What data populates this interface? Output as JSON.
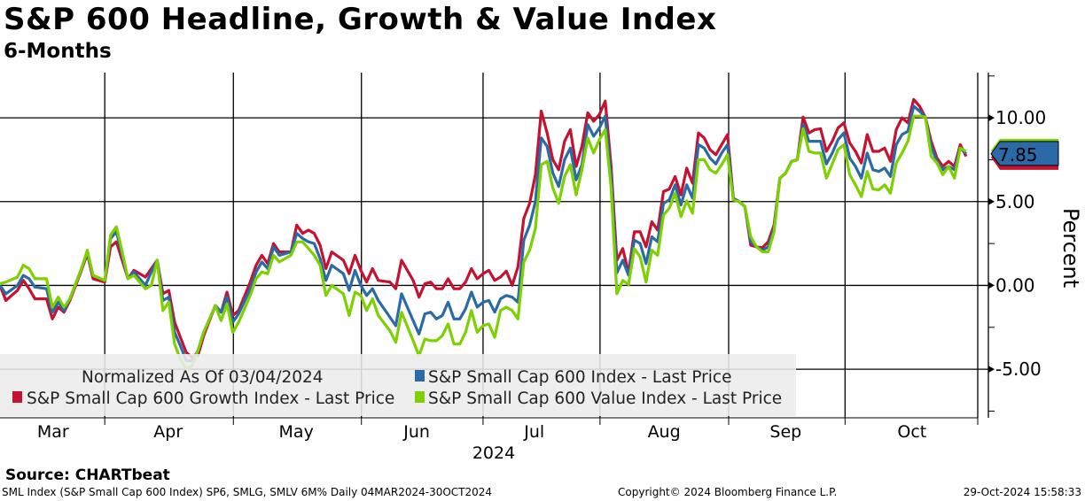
{
  "header": {
    "title": "S&P 600 Headline, Growth & Value Index",
    "subtitle": "6-Months"
  },
  "footer": {
    "source": "Source: CHARTbeat",
    "left": "SML Index (S&P Small Cap 600 Index) SP6, SMLG, SMLV 6M%  Daily 04MAR2024-30OCT2024",
    "center": "Copyright© 2024 Bloomberg Finance L.P.",
    "right": "29-Oct-2024 15:58:33"
  },
  "chart_data": {
    "type": "line",
    "title": "S&P 600 Headline, Growth & Value Index",
    "subtitle": "6-Months",
    "xlabel": "2024",
    "ylabel": "Percent",
    "x_unit": "trading day index from 04-Mar-2024",
    "xlim": [
      0,
      168
    ],
    "ylim": [
      -7.9,
      12.7
    ],
    "grid": true,
    "legend_placement": "bottom-left",
    "legend_note": "Normalized As Of 03/04/2024",
    "month_boundaries": [
      18,
      40.1,
      62.1,
      83,
      103.1,
      125.2,
      145.2,
      168
    ],
    "month_labels": [
      {
        "label": "Mar",
        "x": 9.1
      },
      {
        "label": "Apr",
        "x": 28.9
      },
      {
        "label": "May",
        "x": 50.9
      },
      {
        "label": "Jun",
        "x": 71.6
      },
      {
        "label": "Jul",
        "x": 91.8
      },
      {
        "label": "Aug",
        "x": 114.1
      },
      {
        "label": "Sep",
        "x": 135
      },
      {
        "label": "Oct",
        "x": 156.7
      }
    ],
    "y_ticks": [
      {
        "v": 10,
        "label": "10.00"
      },
      {
        "v": 5,
        "label": "5.00"
      },
      {
        "v": 0,
        "label": "0.00"
      },
      {
        "v": -5,
        "label": "-5.00"
      }
    ],
    "y_minor_ticks": [
      12.5,
      7.5,
      2.5,
      -2.5,
      -7.5
    ],
    "last_value": {
      "label": "7.85",
      "value": 7.85
    },
    "x": [
      0,
      1,
      3,
      4,
      5,
      6,
      8,
      9,
      10,
      11,
      12,
      14,
      15,
      16,
      18,
      19,
      20,
      21,
      22,
      23,
      25,
      26,
      27,
      28,
      29,
      30,
      31,
      32,
      33,
      34,
      35,
      37,
      38,
      39,
      40,
      41,
      43,
      44,
      45,
      46,
      47,
      48,
      50,
      51,
      52,
      53,
      54,
      55,
      56,
      57,
      59,
      60,
      61,
      62,
      63,
      64,
      65,
      67,
      68,
      69,
      71,
      72,
      73,
      74,
      75,
      76,
      77,
      78,
      79,
      80,
      81,
      82,
      83,
      84,
      85,
      86,
      87,
      88,
      89,
      90,
      91,
      92,
      93,
      94,
      95,
      96,
      97,
      98,
      99,
      100,
      101,
      102,
      103,
      104,
      105,
      106,
      107,
      108,
      109,
      110,
      111,
      112,
      113,
      114,
      115,
      116,
      117,
      118,
      119,
      120,
      121,
      122,
      123,
      124,
      125,
      126,
      127,
      128,
      129,
      130,
      131,
      132,
      133,
      134,
      135,
      136,
      137,
      138,
      139,
      140,
      141,
      142,
      143,
      144,
      145,
      146,
      147,
      148,
      149,
      150,
      151,
      152,
      153,
      154,
      155,
      156,
      157,
      158,
      159,
      160,
      161,
      162,
      163,
      164,
      165,
      166
    ],
    "series": [
      {
        "name": "S&P Small Cap 600 Index - Last Price",
        "color": "#2a6aa6",
        "values": [
          0,
          -0.5,
          0,
          0.6,
          0.4,
          -0.1,
          -0.2,
          -1.6,
          -1,
          -1.5,
          -0.8,
          1,
          2,
          0.6,
          0.3,
          2.8,
          3.2,
          1.8,
          0.4,
          0.8,
          0,
          0.8,
          1.5,
          -0.9,
          -0.7,
          -2.8,
          -3.6,
          -4.5,
          -4.5,
          -3.9,
          -2.8,
          -1.2,
          -1.6,
          -0.7,
          -2.2,
          -1.7,
          -0.2,
          0.8,
          1.4,
          1,
          2.3,
          1.8,
          2,
          3.1,
          2.8,
          2.6,
          2.5,
          1.6,
          0.3,
          1.2,
          0.7,
          -0.3,
          0.9,
          0,
          -0.6,
          -0.2,
          -0.9,
          -1.9,
          -2.4,
          -0.5,
          -2.1,
          -2.9,
          -1.7,
          -1.6,
          -2,
          -1.8,
          -1,
          -2,
          -2,
          -1.4,
          -0.4,
          -1.3,
          -1,
          -0.9,
          -1.6,
          -0.8,
          -0.6,
          -0.7,
          -1,
          2.7,
          3.6,
          5,
          8.8,
          8.3,
          6.7,
          5.9,
          7.5,
          8.2,
          6.3,
          7.2,
          9.6,
          8.9,
          9.4,
          10.1,
          6.5,
          0.75,
          1.5,
          0.6,
          2.7,
          2.5,
          1.3,
          2.9,
          2.6,
          4.9,
          5.1,
          6,
          4.8,
          6,
          5.2,
          8.4,
          8.2,
          7.6,
          7.25,
          7.9,
          8.4,
          5.2,
          5,
          4.7,
          2.6,
          2.3,
          2.1,
          2.3,
          3.4,
          6.4,
          6.7,
          7.4,
          7.5,
          9.6,
          8.6,
          8.6,
          8.6,
          7.25,
          7.9,
          8.7,
          9.1,
          7.6,
          7.1,
          6.4,
          7.9,
          6.9,
          6.8,
          7,
          6.5,
          8.4,
          9,
          9.2,
          10.7,
          10.4,
          10.05,
          8.3,
          7.4,
          6.9,
          7.1,
          6.9,
          8.2,
          7.85
        ]
      },
      {
        "name": "S&P Small Cap 600 Growth Index - Last Price",
        "color": "#c41230",
        "values": [
          0,
          -0.9,
          -0.3,
          0.3,
          -0.2,
          -0.8,
          -0.8,
          -2,
          -1.3,
          -1.6,
          -0.9,
          0.9,
          1.9,
          0.4,
          0.2,
          2.3,
          2.6,
          1.5,
          0.4,
          0.9,
          0.5,
          1,
          1.5,
          -0.5,
          -0.3,
          -2.2,
          -3.1,
          -4,
          -4.3,
          -4.2,
          -3,
          -1.2,
          -1.6,
          -0.4,
          -1.8,
          -1.5,
          0.2,
          1.2,
          1.8,
          1.3,
          2.5,
          2,
          2,
          3.6,
          3.1,
          3.3,
          3.1,
          2.4,
          1,
          2,
          1.5,
          0.7,
          1.8,
          0.9,
          0.2,
          1,
          0.3,
          0.2,
          -0.2,
          1.5,
          0.3,
          -0.7,
          0.1,
          0.2,
          -0.2,
          -0.2,
          0.4,
          -0.2,
          -0.2,
          0.2,
          1,
          0.4,
          0.7,
          0.9,
          0.3,
          0.5,
          0.85,
          0,
          1.1,
          4,
          4.9,
          6.6,
          10.4,
          9.1,
          7.5,
          6.9,
          8.6,
          9.3,
          7.1,
          8.3,
          10.3,
          9.8,
          10.2,
          11,
          7.1,
          1.5,
          2.2,
          0.75,
          3.2,
          3.2,
          2.3,
          3.8,
          3.3,
          5.6,
          5.75,
          6.5,
          5.4,
          7,
          6.1,
          9.1,
          8.8,
          8.1,
          7.8,
          8.4,
          9,
          5.2,
          5,
          4.7,
          2.4,
          2.3,
          2.25,
          2.6,
          3.6,
          6.4,
          6.7,
          7.4,
          7.5,
          10.05,
          9.1,
          9.3,
          9.35,
          8,
          8.6,
          9.4,
          9.7,
          8.5,
          8,
          7.3,
          9,
          8,
          8,
          8.2,
          7.4,
          9.3,
          10,
          9.7,
          11.1,
          10.7,
          10.05,
          8.6,
          7.6,
          7.1,
          7.4,
          7.1,
          8.4,
          7.7
        ]
      },
      {
        "name": "S&P Small Cap 600 Value Index - Last Price",
        "color": "#7ed000",
        "values": [
          0.1,
          0.2,
          0.5,
          1.2,
          1,
          0.4,
          0.4,
          -1.3,
          -0.7,
          -1.3,
          -0.8,
          1,
          2.1,
          0.6,
          0.3,
          3,
          3.5,
          2,
          0.4,
          0.6,
          -0.2,
          0,
          1.5,
          -1.5,
          -1,
          -3.5,
          -4.4,
          -5,
          -4.8,
          -3.9,
          -2.8,
          -1.2,
          -2.1,
          -1.1,
          -2.8,
          -2.2,
          -0.6,
          0.4,
          0.8,
          0.7,
          1.8,
          1.4,
          1.8,
          2.6,
          2.6,
          2.2,
          1.8,
          1.2,
          -0.6,
          0,
          -0.5,
          -1.8,
          -0.4,
          -0.6,
          -1.5,
          -0.8,
          -1.8,
          -2.7,
          -3.4,
          -1.6,
          -3.3,
          -4.2,
          -3.2,
          -3.3,
          -3.3,
          -3,
          -2.3,
          -3.5,
          -3.5,
          -2.8,
          -1.5,
          -2.8,
          -2.4,
          -2.3,
          -3.1,
          -1.5,
          -1.3,
          -1.5,
          -2,
          1.4,
          2.1,
          3.4,
          7.2,
          7.4,
          5.8,
          4.9,
          6.5,
          7.2,
          5.4,
          6.9,
          8.8,
          7.9,
          8.7,
          9.3,
          5.8,
          -0.5,
          0.3,
          0.05,
          2.2,
          1.7,
          0.2,
          2.1,
          1.8,
          4.2,
          4.6,
          5.5,
          4.1,
          5.05,
          4.3,
          7.5,
          7.5,
          6.9,
          6.7,
          7.2,
          7.8,
          5.1,
          5,
          4.7,
          2.9,
          2.3,
          2,
          2,
          3.2,
          6.4,
          6.7,
          7.4,
          7.5,
          9.35,
          8,
          7.9,
          7.9,
          6.4,
          7.25,
          8.1,
          8.4,
          6.6,
          6,
          5.3,
          6.8,
          5.75,
          5.7,
          6,
          5.5,
          7.3,
          7.9,
          8.6,
          10.1,
          10.1,
          10.05,
          7.7,
          7.3,
          6.6,
          7.1,
          6.4,
          8.2,
          8
        ]
      }
    ]
  }
}
